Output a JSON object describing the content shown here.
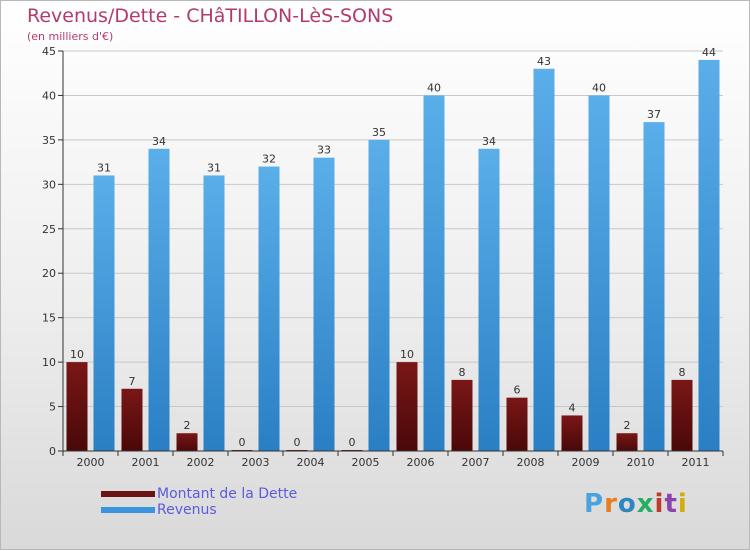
{
  "header": {
    "title": "Revenus/Dette - CHâTILLON-LèS-SONS",
    "subtitle": "(en milliers d'€)"
  },
  "legend": {
    "items": [
      {
        "label": "Montant de la Dette",
        "color": "#6b1414"
      },
      {
        "label": "Revenus",
        "color": "#3a95de"
      }
    ]
  },
  "logo": {
    "text": "Proxiti",
    "letter_colors": [
      "#4aa3df",
      "#e67e22",
      "#2e86c1",
      "#27ae60",
      "#c0392b",
      "#8e44ad",
      "#d4ac0d"
    ]
  },
  "colors": {
    "dette": "#6b1414",
    "revenus": "#3a95de",
    "axis": "#333333",
    "grid": "#c8c8c8"
  },
  "chart_data": {
    "type": "bar",
    "title": "Revenus/Dette - CHâTILLON-LèS-SONS",
    "subtitle": "(en milliers d'€)",
    "categories": [
      "2000",
      "2001",
      "2002",
      "2003",
      "2004",
      "2005",
      "2006",
      "2007",
      "2008",
      "2009",
      "2010",
      "2011"
    ],
    "series": [
      {
        "name": "Montant de la Dette",
        "values": [
          10,
          7,
          2,
          0,
          0,
          0,
          10,
          8,
          6,
          4,
          2,
          8
        ]
      },
      {
        "name": "Revenus",
        "values": [
          31,
          34,
          31,
          32,
          33,
          35,
          40,
          34,
          43,
          40,
          37,
          44
        ]
      }
    ],
    "ylim": [
      0,
      45
    ],
    "yticks": [
      0,
      5,
      10,
      15,
      20,
      25,
      30,
      35,
      40,
      45
    ],
    "grid": true,
    "legend_position": "bottom-left",
    "data_labels": true
  }
}
